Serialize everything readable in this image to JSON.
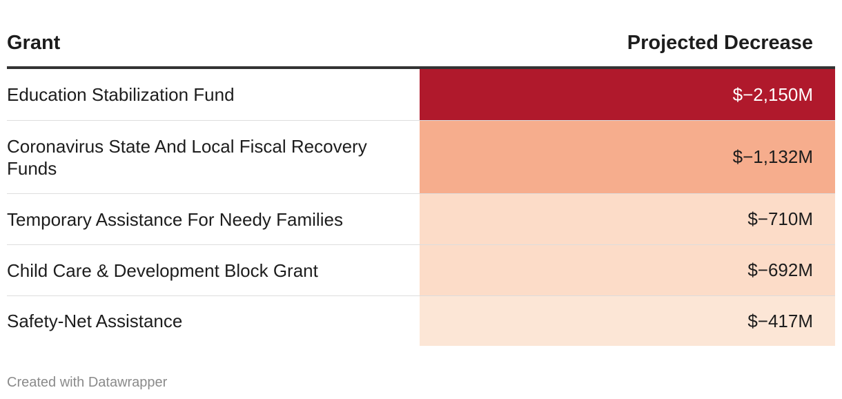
{
  "chart_data": {
    "type": "table",
    "columns": [
      "Grant",
      "Projected Decrease"
    ],
    "rows": [
      {
        "grant": "Education Stabilization Fund",
        "value": -2150,
        "label": "$−2,150M",
        "color": "#b0192c",
        "text_color": "#ffffff"
      },
      {
        "grant": "Coronavirus State And Local Fiscal Recovery Funds",
        "value": -1132,
        "label": "$−1,132M",
        "color": "#f6ad8d",
        "text_color": "#1d1d1d"
      },
      {
        "grant": "Temporary Assistance For Needy Families",
        "value": -710,
        "label": "$−710M",
        "color": "#fcdcc8",
        "text_color": "#1d1d1d"
      },
      {
        "grant": "Child Care & Development Block Grant",
        "value": -692,
        "label": "$−692M",
        "color": "#fcdcc8",
        "text_color": "#1d1d1d"
      },
      {
        "grant": "Safety-Net Assistance",
        "value": -417,
        "label": "$−417M",
        "color": "#fce6d6",
        "text_color": "#1d1d1d"
      }
    ]
  },
  "footer": "Created with Datawrapper"
}
